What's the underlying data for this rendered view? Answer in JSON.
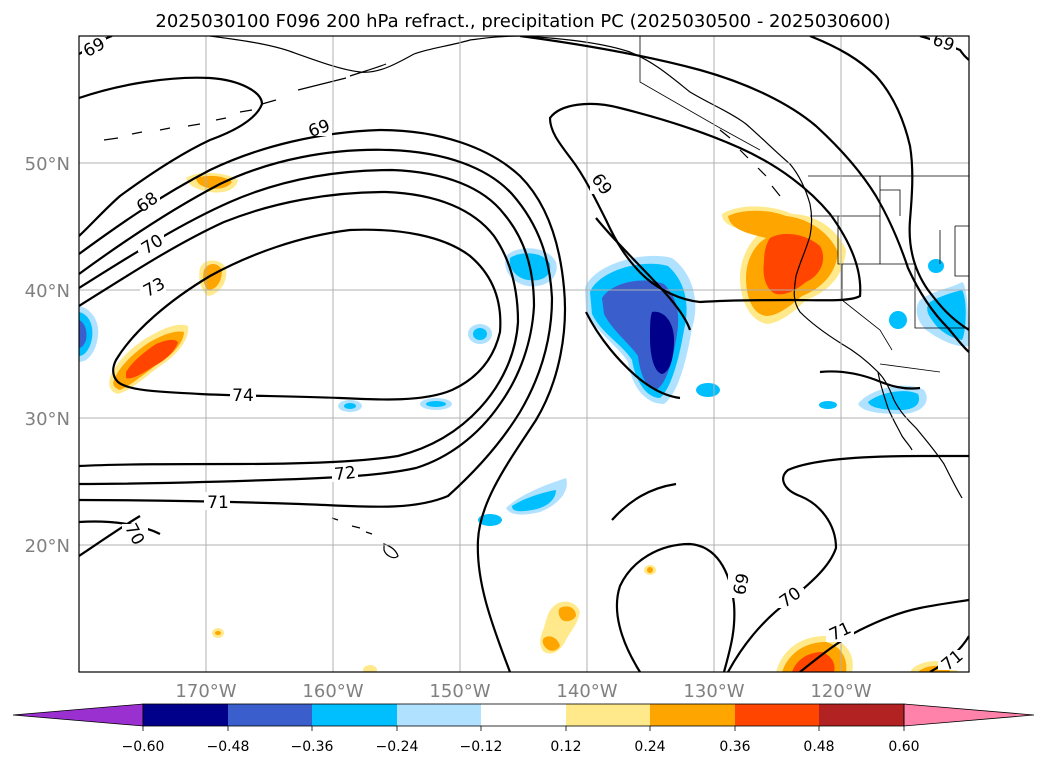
{
  "title": "2025030100 F096 200 hPa refract., precipitation PC (2025030500 - 2025030600)",
  "map": {
    "lon_range": [
      -180,
      -110
    ],
    "lat_range": [
      10,
      60
    ],
    "lat_ticks": [
      "50°N",
      "40°N",
      "30°N",
      "20°N"
    ],
    "lon_ticks": [
      "170°W",
      "160°W",
      "150°W",
      "140°W",
      "130°W",
      "120°W"
    ],
    "grid": true
  },
  "contour_labels": [
    "69",
    "69",
    "69",
    "69",
    "68",
    "70",
    "73",
    "74",
    "72",
    "71",
    "70",
    "69",
    "70",
    "71",
    "71"
  ],
  "colorbar": {
    "ticks": [
      "−0.60",
      "−0.48",
      "−0.36",
      "−0.24",
      "−0.12",
      "0.12",
      "0.24",
      "0.36",
      "0.48",
      "0.60"
    ],
    "colors": [
      "#9b30d0",
      "#00008b",
      "#3a5fcd",
      "#00bfff",
      "#b0e2ff",
      "#ffffff",
      "#ffe98a",
      "#ffa500",
      "#ff4500",
      "#b22222",
      "#ff82ab"
    ],
    "extend": "both"
  },
  "colors": {
    "neg_deep": "#00008b",
    "neg_mid": "#3a5fcd",
    "neg_light": "#00bfff",
    "neg_pale": "#b0e2ff",
    "pos_pale": "#ffe98a",
    "pos_light": "#ffa500",
    "pos_mid": "#ff4500"
  }
}
